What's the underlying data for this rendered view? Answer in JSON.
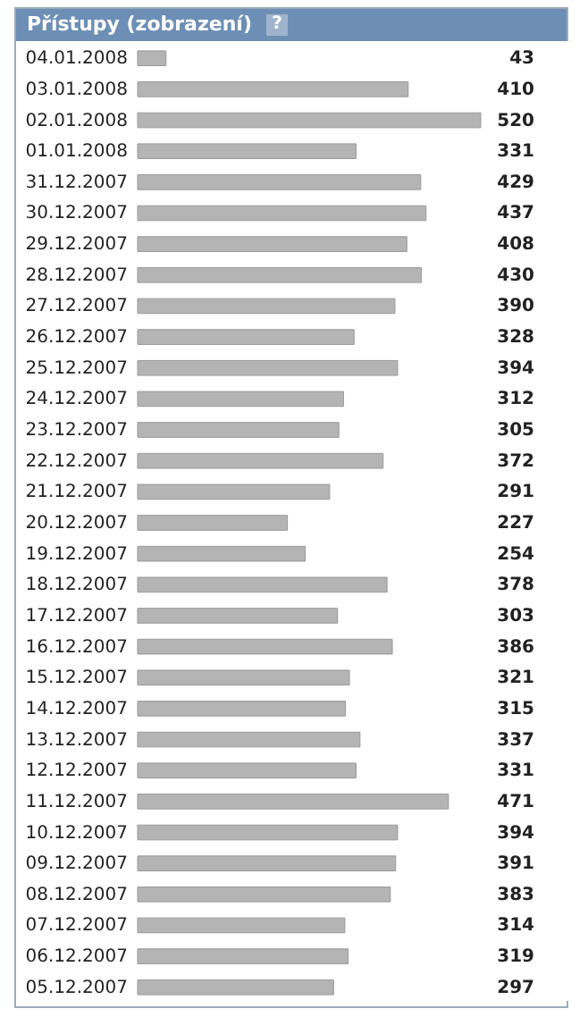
{
  "chart_data": {
    "type": "bar",
    "orientation": "horizontal",
    "title": "Přístupy (zobrazení)",
    "annotations": [
      "?"
    ],
    "data_labels": true,
    "color": "#b4b4b4",
    "categories": [
      "04.01.2008",
      "03.01.2008",
      "02.01.2008",
      "01.01.2008",
      "31.12.2007",
      "30.12.2007",
      "29.12.2007",
      "28.12.2007",
      "27.12.2007",
      "26.12.2007",
      "25.12.2007",
      "24.12.2007",
      "23.12.2007",
      "22.12.2007",
      "21.12.2007",
      "20.12.2007",
      "19.12.2007",
      "18.12.2007",
      "17.12.2007",
      "16.12.2007",
      "15.12.2007",
      "14.12.2007",
      "13.12.2007",
      "12.12.2007",
      "11.12.2007",
      "10.12.2007",
      "09.12.2007",
      "08.12.2007",
      "07.12.2007",
      "06.12.2007",
      "05.12.2007"
    ],
    "values": [
      43,
      410,
      520,
      331,
      429,
      437,
      408,
      430,
      390,
      328,
      394,
      312,
      305,
      372,
      291,
      227,
      254,
      378,
      303,
      386,
      321,
      315,
      337,
      331,
      471,
      394,
      391,
      383,
      314,
      319,
      297
    ]
  }
}
